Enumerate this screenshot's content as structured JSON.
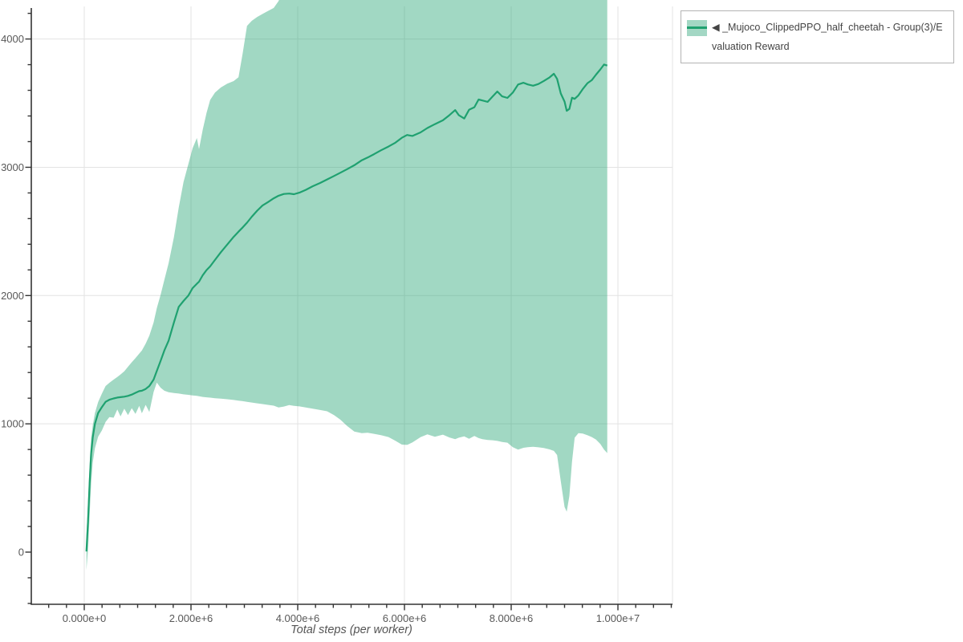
{
  "chart_data": {
    "type": "line",
    "title": "",
    "xlabel": "Total steps (per worker)",
    "ylabel": "",
    "xlim_steps": [
      -1000000,
      11000000
    ],
    "ylim": [
      -405,
      4255
    ],
    "x_ticks_steps": [
      0,
      2000000,
      4000000,
      6000000,
      8000000,
      10000000
    ],
    "x_tick_labels": [
      "0.000e+0",
      "2.000e+6",
      "4.000e+6",
      "6.000e+6",
      "8.000e+6",
      "1.000e+7"
    ],
    "x_minor_tick_interval_steps": 333333,
    "y_ticks": [
      0,
      1000,
      2000,
      3000,
      4000
    ],
    "y_tick_labels": [
      "0",
      "1000",
      "2000",
      "3000",
      "4000"
    ],
    "y_minor_tick_interval": 200,
    "grid": true,
    "legend_position": "top-right",
    "series": [
      {
        "name": "◀ _Mujoco_ClippedPPO_half_cheetah - Group(3)/Evaluation Reward",
        "line_color": "#1fa170",
        "band_fill_color": "#1fa170",
        "band_opacity": 0.42,
        "points_format": [
          "x_millions_of_steps",
          "mean_reward",
          "band_lower",
          "band_upper"
        ],
        "points": [
          [
            0.04,
            5,
            -140,
            120
          ],
          [
            0.07,
            240,
            20,
            390
          ],
          [
            0.1,
            540,
            290,
            690
          ],
          [
            0.13,
            770,
            540,
            890
          ],
          [
            0.16,
            895,
            700,
            990
          ],
          [
            0.2,
            1000,
            810,
            1085
          ],
          [
            0.26,
            1085,
            900,
            1170
          ],
          [
            0.33,
            1130,
            948,
            1235
          ],
          [
            0.4,
            1172,
            1015,
            1295
          ],
          [
            0.47,
            1188,
            1052,
            1320
          ],
          [
            0.55,
            1198,
            1048,
            1345
          ],
          [
            0.62,
            1205,
            1112,
            1365
          ],
          [
            0.68,
            1208,
            1058,
            1385
          ],
          [
            0.75,
            1212,
            1118,
            1410
          ],
          [
            0.82,
            1218,
            1068,
            1445
          ],
          [
            0.89,
            1228,
            1122,
            1480
          ],
          [
            0.96,
            1242,
            1078,
            1512
          ],
          [
            1.03,
            1255,
            1140,
            1548
          ],
          [
            1.08,
            1258,
            1082,
            1572
          ],
          [
            1.15,
            1272,
            1148,
            1625
          ],
          [
            1.22,
            1295,
            1092,
            1688
          ],
          [
            1.3,
            1345,
            1248,
            1790
          ],
          [
            1.36,
            1412,
            1322,
            1902
          ],
          [
            1.43,
            1490,
            1282,
            2005
          ],
          [
            1.5,
            1572,
            1258,
            2122
          ],
          [
            1.58,
            1648,
            1246,
            2252
          ],
          [
            1.68,
            1790,
            1240,
            2455
          ],
          [
            1.77,
            1912,
            1236,
            2685
          ],
          [
            1.86,
            1958,
            1230,
            2885
          ],
          [
            1.95,
            2000,
            1226,
            3025
          ],
          [
            2.03,
            2058,
            1222,
            3148
          ],
          [
            2.11,
            2092,
            1218,
            3228
          ],
          [
            2.15,
            2108,
            1215,
            3142
          ],
          [
            2.22,
            2158,
            1210,
            3292
          ],
          [
            2.29,
            2198,
            1207,
            3422
          ],
          [
            2.36,
            2228,
            1204,
            3525
          ],
          [
            2.45,
            2278,
            1200,
            3582
          ],
          [
            2.56,
            2338,
            1196,
            3622
          ],
          [
            2.68,
            2398,
            1192,
            3652
          ],
          [
            2.8,
            2458,
            1186,
            3672
          ],
          [
            2.89,
            2498,
            1181,
            3702
          ],
          [
            2.97,
            2532,
            1177,
            3892
          ],
          [
            3.05,
            2568,
            1172,
            4102
          ],
          [
            3.14,
            2615,
            1166,
            4142
          ],
          [
            3.24,
            2662,
            1160,
            4172
          ],
          [
            3.34,
            2702,
            1154,
            4195
          ],
          [
            3.44,
            2728,
            1148,
            4218
          ],
          [
            3.55,
            2758,
            1142,
            4242
          ],
          [
            3.64,
            2778,
            1128,
            4295
          ],
          [
            3.74,
            2792,
            1135,
            4400
          ],
          [
            3.84,
            2795,
            1146,
            4400
          ],
          [
            3.93,
            2790,
            1140,
            4400
          ],
          [
            4.03,
            2802,
            1136,
            4400
          ],
          [
            4.15,
            2824,
            1128,
            4400
          ],
          [
            4.28,
            2852,
            1118,
            4400
          ],
          [
            4.42,
            2878,
            1108,
            4400
          ],
          [
            4.55,
            2905,
            1098,
            4400
          ],
          [
            4.68,
            2932,
            1068,
            4400
          ],
          [
            4.8,
            2958,
            1032,
            4400
          ],
          [
            4.93,
            2986,
            982,
            4400
          ],
          [
            5.06,
            3016,
            940,
            4400
          ],
          [
            5.2,
            3055,
            928,
            4400
          ],
          [
            5.31,
            3076,
            931,
            4400
          ],
          [
            5.43,
            3102,
            922,
            4400
          ],
          [
            5.56,
            3132,
            912,
            4400
          ],
          [
            5.7,
            3162,
            897,
            4400
          ],
          [
            5.83,
            3192,
            868,
            4400
          ],
          [
            5.95,
            3230,
            838,
            4400
          ],
          [
            6.05,
            3252,
            836,
            4400
          ],
          [
            6.15,
            3244,
            856,
            4400
          ],
          [
            6.3,
            3272,
            896,
            4400
          ],
          [
            6.43,
            3306,
            918,
            4400
          ],
          [
            6.57,
            3336,
            899,
            4400
          ],
          [
            6.72,
            3366,
            916,
            4400
          ],
          [
            6.84,
            3406,
            894,
            4400
          ],
          [
            6.95,
            3446,
            880,
            4400
          ],
          [
            7.02,
            3406,
            892,
            4400
          ],
          [
            7.12,
            3380,
            902,
            4400
          ],
          [
            7.21,
            3448,
            884,
            4400
          ],
          [
            7.31,
            3468,
            906,
            4400
          ],
          [
            7.39,
            3528,
            889,
            4400
          ],
          [
            7.46,
            3521,
            881,
            4400
          ],
          [
            7.56,
            3510,
            874,
            4400
          ],
          [
            7.65,
            3551,
            872,
            4400
          ],
          [
            7.74,
            3591,
            867,
            4400
          ],
          [
            7.83,
            3553,
            859,
            4400
          ],
          [
            7.93,
            3541,
            853,
            4400
          ],
          [
            8.03,
            3582,
            818,
            4400
          ],
          [
            8.13,
            3645,
            799,
            4400
          ],
          [
            8.23,
            3659,
            813,
            4400
          ],
          [
            8.31,
            3646,
            818,
            4400
          ],
          [
            8.41,
            3636,
            821,
            4400
          ],
          [
            8.51,
            3649,
            817,
            4400
          ],
          [
            8.61,
            3673,
            812,
            4400
          ],
          [
            8.72,
            3701,
            801,
            4400
          ],
          [
            8.8,
            3729,
            789,
            4400
          ],
          [
            8.86,
            3689,
            757,
            4400
          ],
          [
            8.93,
            3575,
            552,
            4400
          ],
          [
            9.0,
            3512,
            352,
            4400
          ],
          [
            9.04,
            3440,
            315,
            4400
          ],
          [
            9.09,
            3455,
            438,
            4400
          ],
          [
            9.14,
            3542,
            705,
            4400
          ],
          [
            9.19,
            3533,
            892,
            4400
          ],
          [
            9.26,
            3561,
            927,
            4400
          ],
          [
            9.34,
            3609,
            924,
            4400
          ],
          [
            9.43,
            3656,
            911,
            4400
          ],
          [
            9.51,
            3679,
            897,
            4400
          ],
          [
            9.59,
            3722,
            878,
            4400
          ],
          [
            9.67,
            3763,
            843,
            4400
          ],
          [
            9.74,
            3801,
            799,
            4360
          ],
          [
            9.8,
            3793,
            772,
            4320
          ]
        ]
      }
    ]
  },
  "legend": {
    "entries": [
      {
        "label": "◀ _Mujoco_ClippedPPO_half_cheetah - Group(3)/Evaluation Reward",
        "swatch_band_color": "#a3d7c4",
        "swatch_line_color": "#1fa170"
      }
    ]
  },
  "style": {
    "grid_color": "#e3e3e3",
    "axis_color": "#333333",
    "tick_label_color": "#585858",
    "axis_title_color": "#555555",
    "legend_border_color": "#b3b3b3",
    "background": "#ffffff"
  }
}
